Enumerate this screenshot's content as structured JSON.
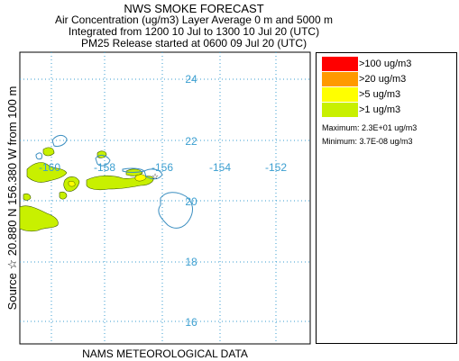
{
  "title": {
    "line1": "NWS SMOKE FORECAST",
    "line2": "Air Concentration (ug/m3) Layer Average    0 m and  5000 m",
    "line3": "Integrated from 1200 10 Jul to 1300 10 Jul 20 (UTC)",
    "line4": "PM25 Release started at 0600 09 Jul 20 (UTC)"
  },
  "side_label": "Source ☆  20.880 N 156.380  W       from  100 m",
  "footer": "NAMS METEOROLOGICAL DATA",
  "map": {
    "lat_labels": [
      "24",
      "22",
      "20",
      "18",
      "16"
    ],
    "lon_labels": [
      "-160",
      "-158",
      "-156",
      "-154",
      "-152"
    ],
    "grid_color": "#3a9ed0",
    "coast_color": "#3a8ec0",
    "smoke_color": "#c8f000"
  },
  "legend": {
    "items": [
      {
        "label": ">100 ug/m3",
        "color": "#ff0000"
      },
      {
        "label": ">20 ug/m3",
        "color": "#ff9900"
      },
      {
        "label": ">5 ug/m3",
        "color": "#ffff00"
      },
      {
        "label": ">1 ug/m3",
        "color": "#c8f000"
      }
    ],
    "maximum": "Maximum: 2.3E+01 ug/m3",
    "minimum": "Minimum: 3.7E-08 ug/m3"
  }
}
